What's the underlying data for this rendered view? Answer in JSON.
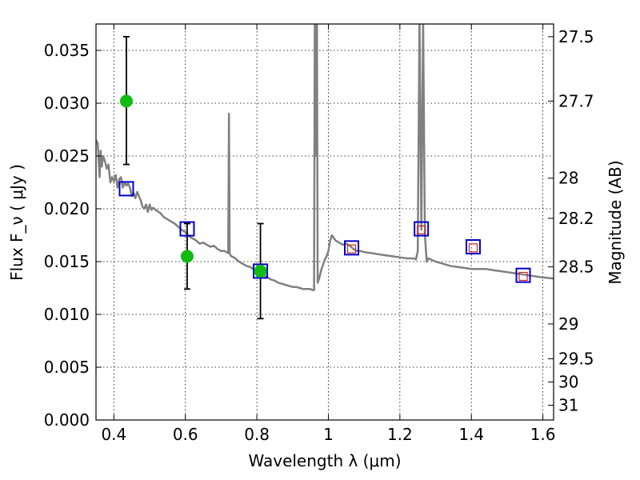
{
  "chart_data": {
    "type": "line",
    "xlabel": "Wavelength  λ (μm)",
    "ylabel": "Flux  F_ν  ( μJy )",
    "y2label": "Magnitude (AB)",
    "xlim": [
      0.35,
      1.63
    ],
    "ylim": [
      0.0,
      0.0375
    ],
    "grid": true,
    "xticks": [
      {
        "value": 0.4,
        "label": "0.4"
      },
      {
        "value": 0.6,
        "label": "0.6"
      },
      {
        "value": 0.8,
        "label": "0.8"
      },
      {
        "value": 1.0,
        "label": "1"
      },
      {
        "value": 1.2,
        "label": "1.2"
      },
      {
        "value": 1.4,
        "label": "1.4"
      },
      {
        "value": 1.6,
        "label": "1.6"
      }
    ],
    "yticks": [
      {
        "value": 0.0,
        "label": "0.000"
      },
      {
        "value": 0.005,
        "label": "0.005"
      },
      {
        "value": 0.01,
        "label": "0.010"
      },
      {
        "value": 0.015,
        "label": "0.015"
      },
      {
        "value": 0.02,
        "label": "0.020"
      },
      {
        "value": 0.025,
        "label": "0.025"
      },
      {
        "value": 0.03,
        "label": "0.030"
      },
      {
        "value": 0.035,
        "label": "0.035"
      }
    ],
    "y2ticks": [
      {
        "flux": 0.0363,
        "label": "27.5"
      },
      {
        "flux": 0.0302,
        "label": "27.7"
      },
      {
        "flux": 0.0229,
        "label": "28"
      },
      {
        "flux": 0.0191,
        "label": "28.2"
      },
      {
        "flux": 0.0145,
        "label": "28.5"
      },
      {
        "flux": 0.0091,
        "label": "29"
      },
      {
        "flux": 0.0058,
        "label": "29.5"
      },
      {
        "flux": 0.0036,
        "label": "30"
      },
      {
        "flux": 0.0014,
        "label": "31"
      }
    ],
    "series": [
      {
        "kind": "spectrum",
        "color": "#808080",
        "x": [
          0.35,
          0.355,
          0.36,
          0.363,
          0.366,
          0.37,
          0.375,
          0.38,
          0.385,
          0.39,
          0.395,
          0.4,
          0.405,
          0.41,
          0.415,
          0.42,
          0.425,
          0.43,
          0.435,
          0.44,
          0.445,
          0.45,
          0.455,
          0.46,
          0.465,
          0.47,
          0.475,
          0.48,
          0.485,
          0.49,
          0.495,
          0.5,
          0.505,
          0.51,
          0.52,
          0.53,
          0.54,
          0.55,
          0.56,
          0.57,
          0.58,
          0.59,
          0.6,
          0.61,
          0.62,
          0.63,
          0.64,
          0.65,
          0.66,
          0.67,
          0.68,
          0.69,
          0.7,
          0.71,
          0.72,
          0.722,
          0.724,
          0.726,
          0.728,
          0.73,
          0.74,
          0.75,
          0.76,
          0.77,
          0.78,
          0.79,
          0.8,
          0.81,
          0.82,
          0.83,
          0.84,
          0.85,
          0.86,
          0.87,
          0.88,
          0.89,
          0.9,
          0.91,
          0.92,
          0.93,
          0.94,
          0.95,
          0.955,
          0.96,
          0.962,
          0.965,
          0.968,
          0.97,
          0.975,
          0.98,
          0.985,
          0.99,
          0.995,
          1.0,
          1.005,
          1.01,
          1.02,
          1.03,
          1.04,
          1.05,
          1.06,
          1.07,
          1.08,
          1.09,
          1.1,
          1.12,
          1.14,
          1.16,
          1.18,
          1.2,
          1.22,
          1.24,
          1.245,
          1.25,
          1.255,
          1.26,
          1.265,
          1.27,
          1.275,
          1.28,
          1.3,
          1.32,
          1.34,
          1.36,
          1.38,
          1.4,
          1.42,
          1.44,
          1.46,
          1.48,
          1.5,
          1.52,
          1.54,
          1.56,
          1.58,
          1.6,
          1.63
        ],
        "y": [
          0.0265,
          0.0262,
          0.023,
          0.0255,
          0.024,
          0.025,
          0.0245,
          0.0238,
          0.0242,
          0.0225,
          0.023,
          0.0226,
          0.0232,
          0.022,
          0.0228,
          0.023,
          0.022,
          0.0225,
          0.0222,
          0.0224,
          0.022,
          0.0212,
          0.0215,
          0.021,
          0.0216,
          0.0212,
          0.0208,
          0.0202,
          0.02,
          0.0204,
          0.0197,
          0.0204,
          0.0199,
          0.0201,
          0.0198,
          0.0196,
          0.0192,
          0.019,
          0.0188,
          0.0186,
          0.0183,
          0.018,
          0.0178,
          0.0174,
          0.0172,
          0.017,
          0.0167,
          0.0168,
          0.0166,
          0.0164,
          0.0165,
          0.0162,
          0.016,
          0.016,
          0.0158,
          0.029,
          0.0158,
          0.0156,
          0.0155,
          0.0155,
          0.0153,
          0.015,
          0.0148,
          0.0146,
          0.0145,
          0.0143,
          0.014,
          0.0139,
          0.0137,
          0.0135,
          0.0133,
          0.0132,
          0.013,
          0.0129,
          0.0128,
          0.0127,
          0.0126,
          0.0126,
          0.0125,
          0.0124,
          0.0124,
          0.0124,
          0.0123,
          0.0123,
          0.038,
          0.025,
          0.038,
          0.013,
          0.0135,
          0.0142,
          0.0147,
          0.0152,
          0.0155,
          0.016,
          0.017,
          0.0175,
          0.017,
          0.0168,
          0.0166,
          0.0167,
          0.0165,
          0.0162,
          0.016,
          0.016,
          0.0159,
          0.0158,
          0.0157,
          0.0156,
          0.0155,
          0.0154,
          0.0153,
          0.0153,
          0.0152,
          0.016,
          0.038,
          0.018,
          0.038,
          0.0175,
          0.015,
          0.0153,
          0.015,
          0.0148,
          0.0146,
          0.0145,
          0.0144,
          0.0143,
          0.0143,
          0.0143,
          0.0142,
          0.0141,
          0.014,
          0.0139,
          0.0138,
          0.0137,
          0.0136,
          0.0135,
          0.0134
        ]
      },
      {
        "kind": "model-photometry",
        "color": "#0000cc",
        "marker": "open-square",
        "x": [
          0.435,
          0.605,
          0.81,
          1.065,
          1.26,
          1.405,
          1.545
        ],
        "y": [
          0.0219,
          0.0181,
          0.0141,
          0.0163,
          0.0181,
          0.0164,
          0.0137
        ]
      },
      {
        "kind": "observed-upper",
        "color": "#cc2222",
        "marker": "small-square",
        "x": [
          1.065,
          1.26,
          1.405,
          1.545
        ],
        "y": [
          0.0162,
          0.018,
          0.0163,
          0.0136
        ]
      },
      {
        "kind": "observed",
        "color": "#11bb11",
        "marker": "filled-circle",
        "x": [
          0.435,
          0.605,
          0.81
        ],
        "y": [
          0.0302,
          0.0155,
          0.0141
        ],
        "err_low": [
          0.0242,
          0.0124,
          0.0096
        ],
        "err_high": [
          0.0363,
          0.0186,
          0.0186
        ]
      }
    ]
  }
}
